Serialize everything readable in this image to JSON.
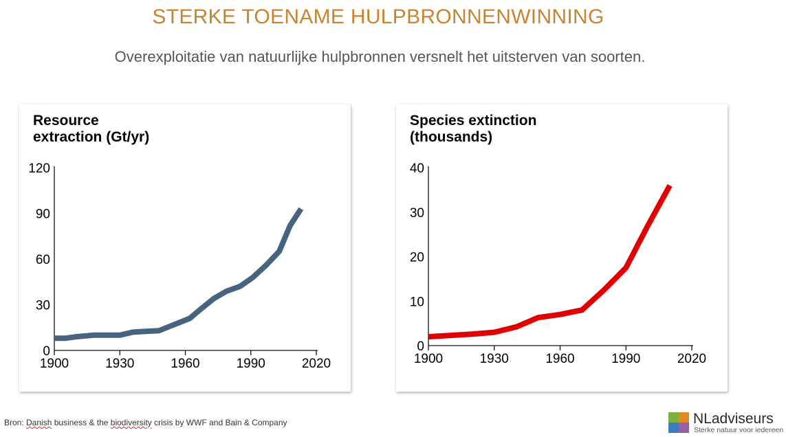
{
  "header": {
    "title": "STERKE TOENAME HULPBRONNENWINNING",
    "subtitle": "Overexploitatie van natuurlijke hulpbronnen versnelt het uitsterven van soorten.",
    "title_color": "#c8842e",
    "subtitle_color": "#555555"
  },
  "source": {
    "prefix": "Bron: ",
    "parts": [
      "Danish",
      " business & the ",
      "biodiversity",
      " crisis by WWF and Bain & Company"
    ]
  },
  "logo": {
    "name": "NLadviseurs",
    "tagline": "Sterke natuur voor iedereen",
    "colors": [
      "#7fb03a",
      "#e08a2a",
      "#3b7bbf",
      "#9b5ea6"
    ]
  },
  "chart_data": [
    {
      "type": "line",
      "title": "Resource\nextraction (Gt/yr)",
      "color": "#46647f",
      "x": [
        1900,
        1905,
        1910,
        1918,
        1924,
        1930,
        1936,
        1942,
        1948,
        1955,
        1962,
        1967,
        1973,
        1979,
        1985,
        1991,
        1997,
        2003,
        2008,
        2013
      ],
      "y": [
        8,
        8,
        9,
        10,
        10,
        10,
        12,
        12.5,
        13,
        17,
        21,
        27,
        34,
        39,
        42,
        48,
        56,
        65,
        82,
        93
      ],
      "xlim": [
        1900,
        2020
      ],
      "ylim": [
        0,
        120
      ],
      "xticks": [
        "1900",
        "1930",
        "1960",
        "1990",
        "2020"
      ],
      "yticks": [
        "0",
        "30",
        "60",
        "90",
        "120"
      ]
    },
    {
      "type": "line",
      "title": "Species extinction\n(thousands)",
      "color": "#e00000",
      "x": [
        1900,
        1910,
        1920,
        1930,
        1940,
        1950,
        1960,
        1970,
        1980,
        1990,
        2000,
        2010
      ],
      "y": [
        2,
        2.3,
        2.6,
        3,
        4.2,
        6.3,
        7,
        8,
        12.5,
        17.5,
        27,
        36
      ],
      "xlim": [
        1900,
        2020
      ],
      "ylim": [
        0,
        40
      ],
      "xticks": [
        "1900",
        "1930",
        "1960",
        "1990",
        "2020"
      ],
      "yticks": [
        "0",
        "10",
        "20",
        "30",
        "40"
      ]
    }
  ]
}
